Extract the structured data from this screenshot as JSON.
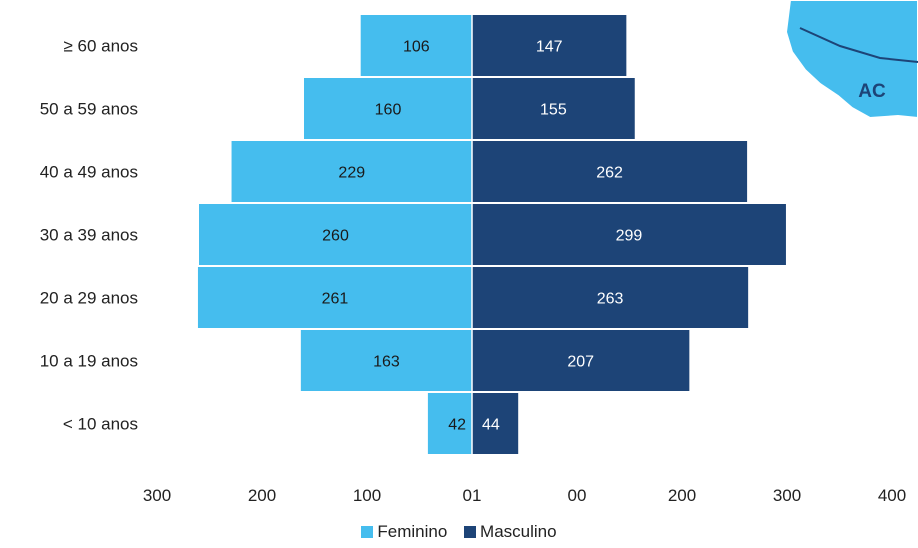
{
  "chart_data": {
    "type": "bar",
    "orientation": "horizontal-population-pyramid",
    "categories": [
      "≥ 60 anos",
      "50 a 59 anos",
      "40 a 49 anos",
      "30 a 39 anos",
      "20 a 29 anos",
      "10 a 19 anos",
      "< 10 anos"
    ],
    "series": [
      {
        "name": "Feminino",
        "values": [
          106,
          160,
          229,
          260,
          261,
          163,
          42
        ],
        "color": "#45BDEE",
        "label_color": "#1a1a1a"
      },
      {
        "name": "Masculino",
        "values": [
          147,
          155,
          262,
          299,
          263,
          207,
          44
        ],
        "color": "#1D4477",
        "label_color": "#ffffff"
      }
    ],
    "x_tick_labels": [
      "300",
      "200",
      "100",
      "01",
      "00",
      "200",
      "300",
      "400"
    ],
    "xlim": [
      -300,
      400
    ],
    "grid": false,
    "legend_position": "bottom"
  },
  "map_inset": {
    "label": "AC",
    "fill": "#45BDEE",
    "label_color": "#1D4477"
  }
}
